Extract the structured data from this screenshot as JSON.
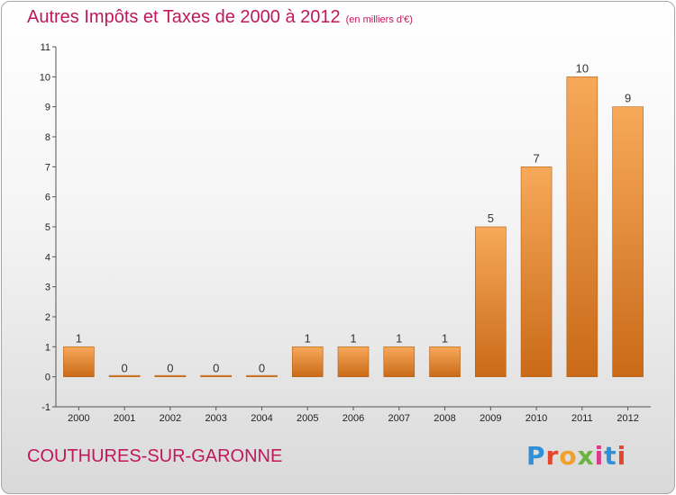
{
  "header": {
    "title": "Autres Impôts et Taxes de 2000 à 2012",
    "unit": "(en milliers d'€)"
  },
  "footer": {
    "commune": "COUTHURES-SUR-GARONNE",
    "logo_letters": [
      "P",
      "r",
      "o",
      "x",
      "i",
      "t",
      "i"
    ],
    "logo_colors": [
      "#2f8fd8",
      "#e2462e",
      "#f2a02c",
      "#6cb33f",
      "#d83c8a",
      "#2f8fd8",
      "#e2462e"
    ]
  },
  "chart_data": {
    "type": "bar",
    "categories": [
      "2000",
      "2001",
      "2002",
      "2003",
      "2004",
      "2005",
      "2006",
      "2007",
      "2008",
      "2009",
      "2010",
      "2011",
      "2012"
    ],
    "values": [
      1,
      0,
      0,
      0,
      0,
      1,
      1,
      1,
      1,
      5,
      7,
      10,
      9
    ],
    "data_labels": [
      "1",
      "0",
      "0",
      "0",
      "0",
      "1",
      "1",
      "1",
      "1",
      "5",
      "7",
      "10",
      "9"
    ],
    "yticks": [
      -1,
      0,
      1,
      2,
      3,
      4,
      5,
      6,
      7,
      8,
      9,
      10,
      11
    ],
    "ylim": [
      -1,
      11
    ],
    "grid": false,
    "bar_color": "#f0963e"
  }
}
